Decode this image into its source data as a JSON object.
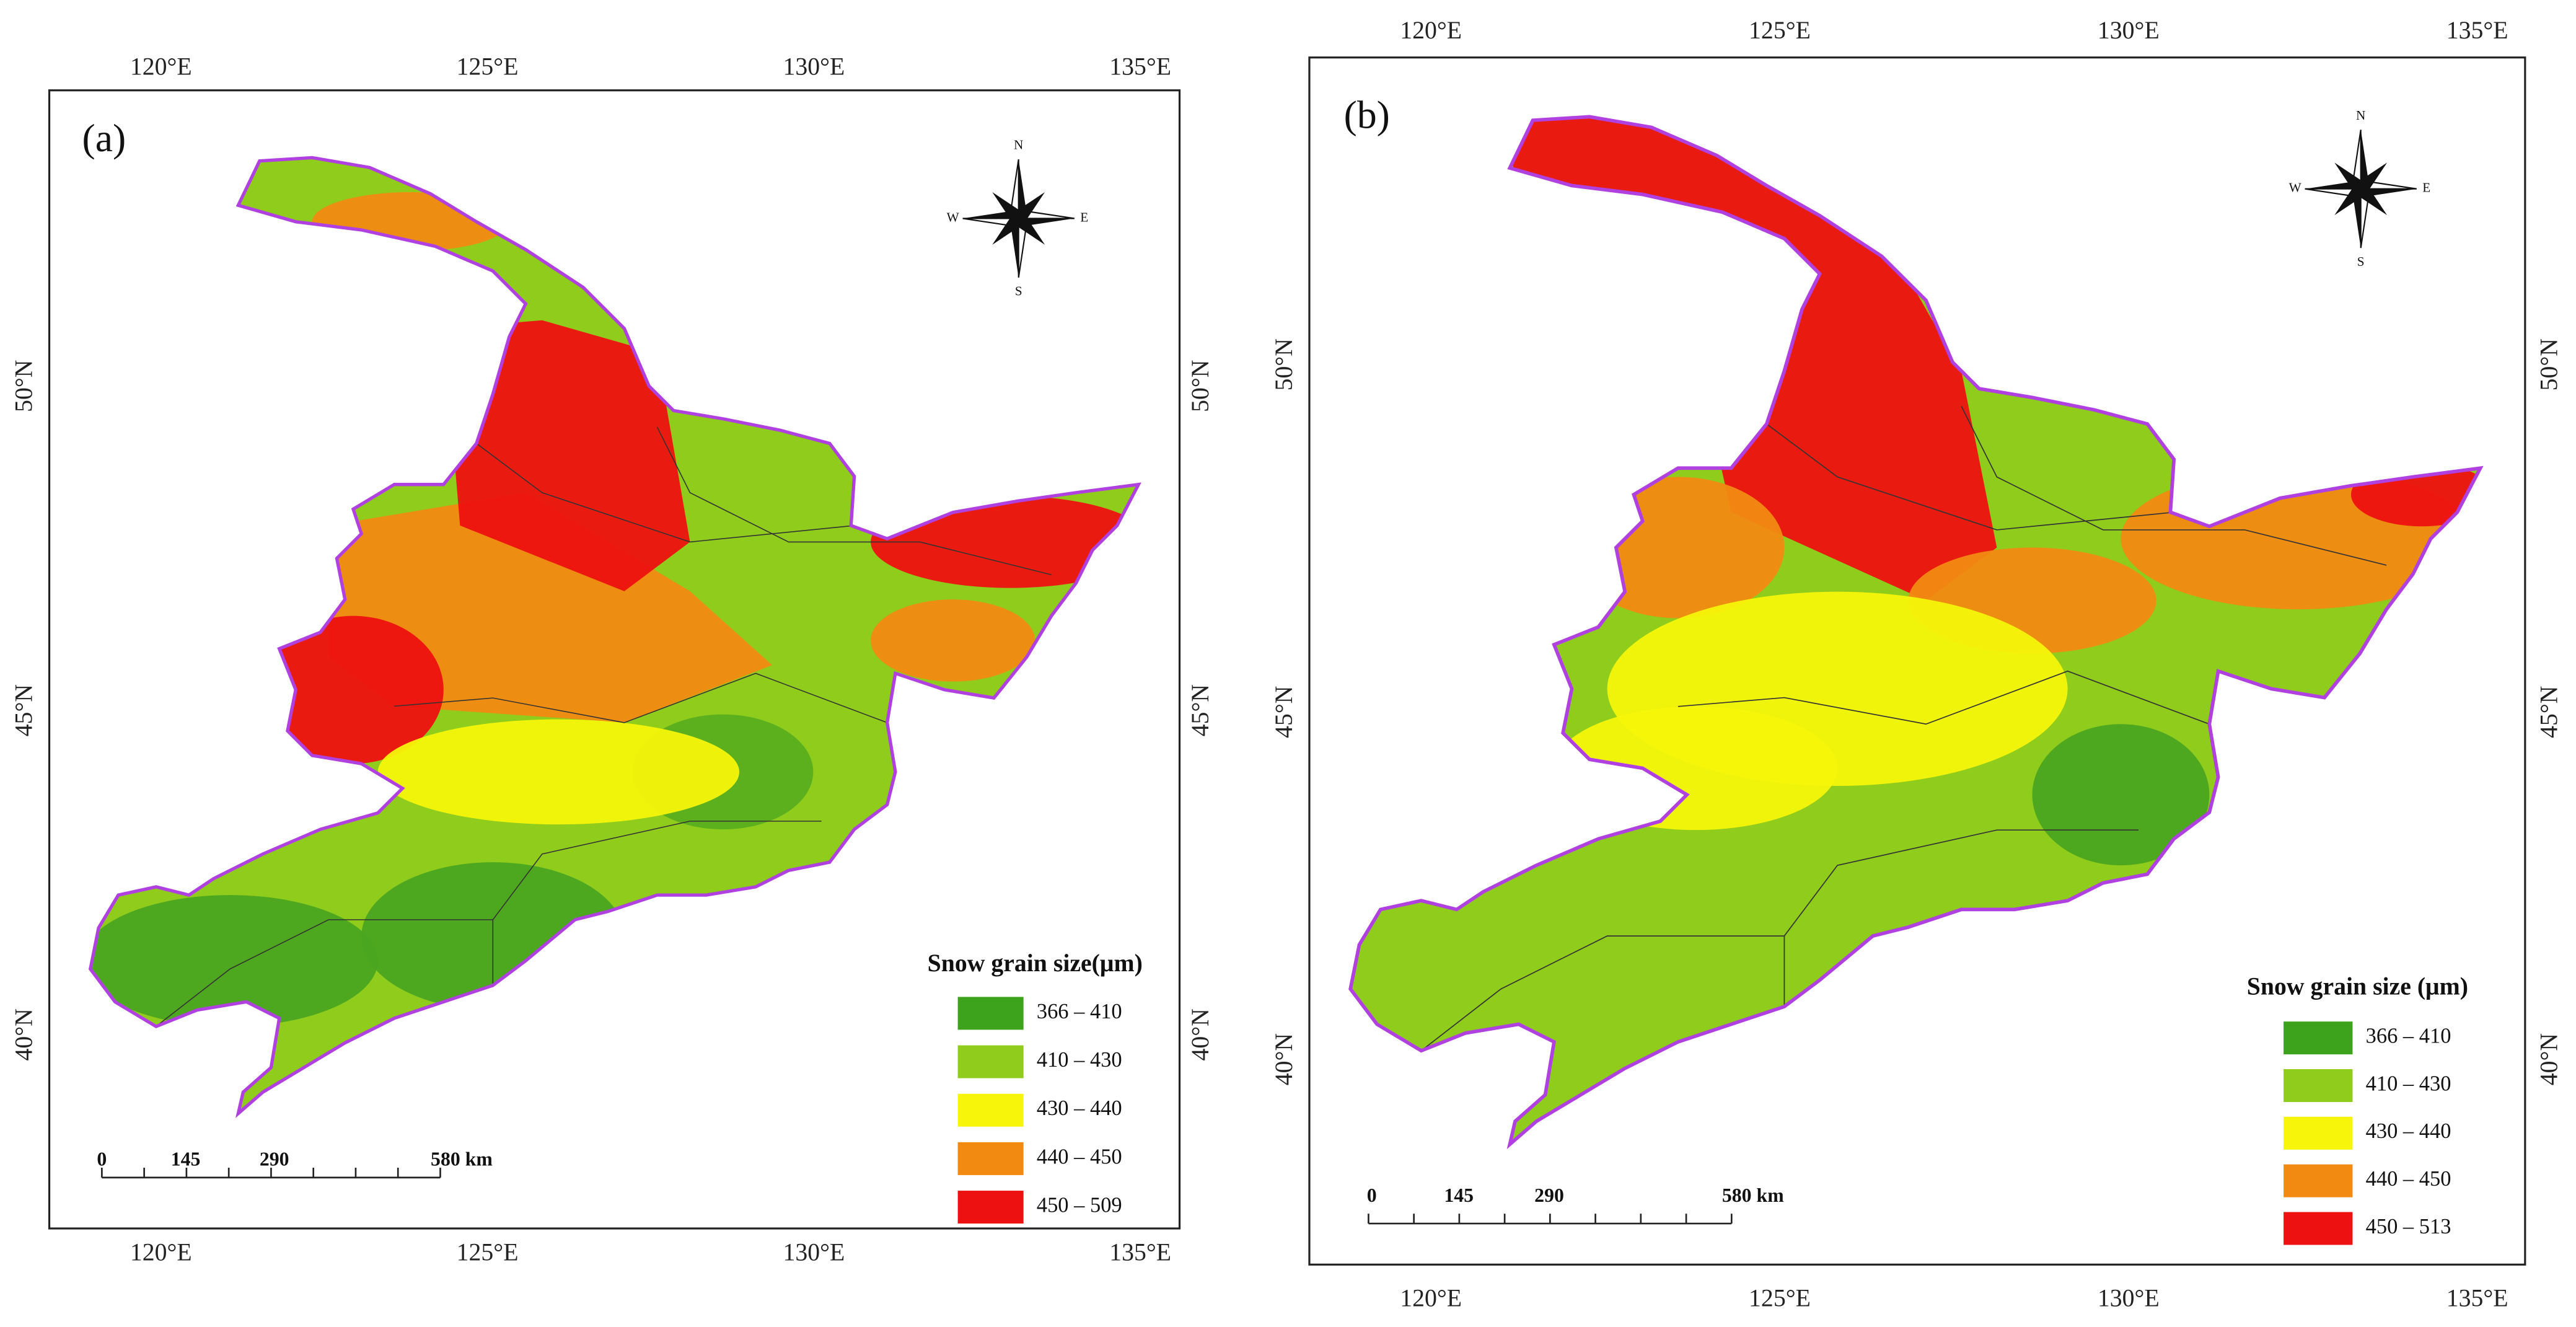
{
  "panels": [
    {
      "label": "(a)",
      "legend": {
        "title": "Snow grain size(μm)",
        "items": [
          "366 – 410",
          "410 – 430",
          "430 – 440",
          "440 – 450",
          "450 – 509"
        ],
        "colors": [
          "#3da21c",
          "#8fcc1c",
          "#f6f50a",
          "#f28a12",
          "#ee1111"
        ]
      },
      "scale_bar": [
        "0",
        "145",
        "290",
        "580 km"
      ]
    },
    {
      "label": "(b)",
      "legend": {
        "title": "Snow grain size (μm)",
        "items": [
          "366 – 410",
          "410 – 430",
          "430 – 440",
          "440 – 450",
          "450 – 513"
        ],
        "colors": [
          "#3da21c",
          "#8fcc1c",
          "#f6f50a",
          "#f28a12",
          "#ee1111"
        ]
      },
      "scale_bar": [
        "0",
        "145",
        "290",
        "580 km"
      ]
    }
  ],
  "longitude_labels": [
    "120°E",
    "125°E",
    "130°E",
    "135°E"
  ],
  "latitude_labels": [
    "50°N",
    "45°N",
    "40°N"
  ],
  "compass": [
    "N",
    "S",
    "E",
    "W"
  ]
}
